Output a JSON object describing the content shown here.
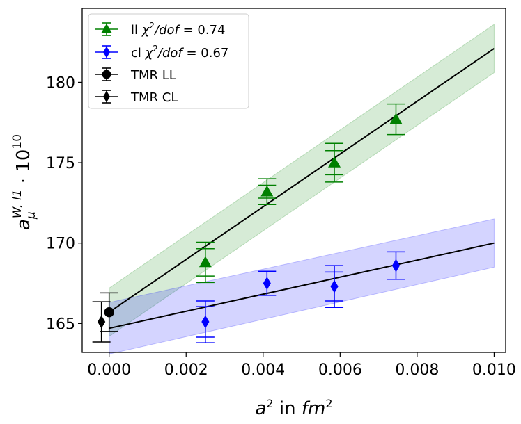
{
  "chart_data": {
    "type": "scatter",
    "x": {
      "label_base": "a",
      "label_sup": "2",
      "label_mid": " in ",
      "label_unit": "fm",
      "label_unit_sup": "2",
      "lim": [
        -0.0007,
        0.0103
      ],
      "ticks": [
        0.0,
        0.002,
        0.004,
        0.006,
        0.008,
        0.01
      ],
      "tick_labels": [
        "0.000",
        "0.002",
        "0.004",
        "0.006",
        "0.008",
        "0.010"
      ]
    },
    "y": {
      "label_base": "a",
      "label_sub": "μ",
      "label_sup": "W, l1",
      "label_tail": " · 10",
      "label_tail_sup": "10",
      "lim": [
        163.2,
        184.6
      ],
      "ticks": [
        165,
        170,
        175,
        180
      ],
      "tick_labels": [
        "165",
        "170",
        "175",
        "180"
      ]
    },
    "grid": false,
    "legend_position": "upper-left",
    "legend": [
      {
        "prefix": "ll ",
        "chi": "χ",
        "chi_sup": "2",
        "rest": "/dof",
        "value": " = 0.74",
        "color": "#008000",
        "marker": "triangle"
      },
      {
        "prefix": "cl ",
        "chi": "χ",
        "chi_sup": "2",
        "rest": "/dof",
        "value": " = 0.67",
        "color": "#0000ff",
        "marker": "diamond"
      },
      {
        "prefix": "TMR LL",
        "color": "#000000",
        "marker": "circle"
      },
      {
        "prefix": "TMR CL",
        "color": "#000000",
        "marker": "diamond"
      }
    ],
    "series": [
      {
        "key": "ll",
        "color": "#008000",
        "marker": "triangle",
        "points": [
          {
            "x": 0.0025,
            "y": 168.8,
            "err_inner": 0.85,
            "err_outer": 1.25
          },
          {
            "x": 0.0041,
            "y": 173.2,
            "err_inner": 0.4,
            "err_outer": 0.8
          },
          {
            "x": 0.00585,
            "y": 175.0,
            "err_inner": 0.75,
            "err_outer": 1.2
          },
          {
            "x": 0.00745,
            "y": 177.7,
            "err_inner": 0.95,
            "err_outer": 0.95
          }
        ],
        "fit": {
          "x": [
            0.0,
            0.01
          ],
          "y": [
            165.7,
            182.1
          ],
          "band_low": [
            164.2,
            180.6
          ],
          "band_high": [
            167.2,
            183.6
          ]
        }
      },
      {
        "key": "cl",
        "color": "#0000ff",
        "marker": "diamond",
        "points": [
          {
            "x": 0.0025,
            "y": 165.1,
            "err_inner": 0.95,
            "err_outer": 1.3
          },
          {
            "x": 0.0041,
            "y": 167.5,
            "err_inner": 0.75,
            "err_outer": 0.75
          },
          {
            "x": 0.00585,
            "y": 167.3,
            "err_inner": 0.9,
            "err_outer": 1.3
          },
          {
            "x": 0.00745,
            "y": 168.6,
            "err_inner": 0.85,
            "err_outer": 0.85
          }
        ],
        "fit": {
          "x": [
            0.0,
            0.01
          ],
          "y": [
            164.7,
            170.0
          ],
          "band_low": [
            163.1,
            168.5
          ],
          "band_high": [
            166.3,
            171.5
          ]
        }
      },
      {
        "key": "tmr_ll",
        "color": "#000000",
        "marker": "circle",
        "points": [
          {
            "x": 0.0,
            "y": 165.7,
            "err_inner": 1.2,
            "err_outer": 1.2
          }
        ]
      },
      {
        "key": "tmr_cl",
        "color": "#000000",
        "marker": "diamond",
        "points": [
          {
            "x": -0.0002,
            "y": 165.1,
            "err_inner": 1.25,
            "err_outer": 1.25
          }
        ]
      }
    ]
  }
}
